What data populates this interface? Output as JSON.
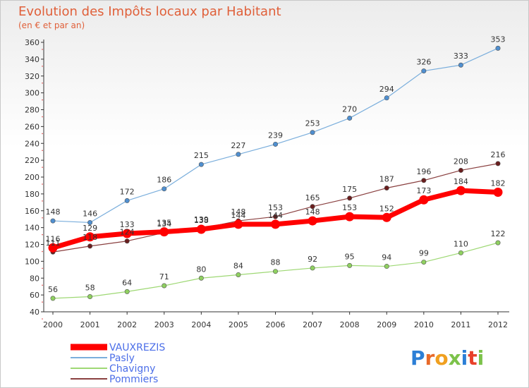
{
  "chart_data": {
    "type": "line",
    "title": "Evolution des Impôts locaux par Habitant",
    "subtitle": "(en € et par an)",
    "xlabel": "",
    "ylabel": "",
    "x": [
      "2000",
      "2001",
      "2002",
      "2003",
      "2004",
      "2005",
      "2006",
      "2007",
      "2008",
      "2009",
      "2010",
      "2011",
      "2012"
    ],
    "ylim": [
      40,
      360
    ],
    "yticks": [
      40,
      60,
      80,
      100,
      120,
      140,
      160,
      180,
      200,
      220,
      240,
      260,
      280,
      300,
      320,
      340,
      360
    ],
    "grid": false,
    "legend_position": "bottom-left",
    "series": [
      {
        "name": "VAUXREZIS",
        "color": "#ff0000",
        "values": [
          116,
          129,
          133,
          135,
          138,
          144,
          144,
          148,
          153,
          152,
          173,
          184,
          182
        ]
      },
      {
        "name": "Pasly",
        "color": "#4f8fd0",
        "values": [
          148,
          146,
          172,
          186,
          215,
          227,
          239,
          253,
          270,
          294,
          326,
          333,
          353
        ]
      },
      {
        "name": "Chavigny",
        "color": "#8fd060",
        "values": [
          56,
          58,
          64,
          71,
          80,
          84,
          88,
          92,
          95,
          94,
          99,
          110,
          122
        ]
      },
      {
        "name": "Pommiers",
        "color": "#7a2828",
        "values": [
          111,
          118,
          124,
          134,
          139,
          148,
          153,
          165,
          175,
          187,
          196,
          208,
          216
        ]
      }
    ]
  },
  "logo": {
    "text": "Proxiti"
  }
}
